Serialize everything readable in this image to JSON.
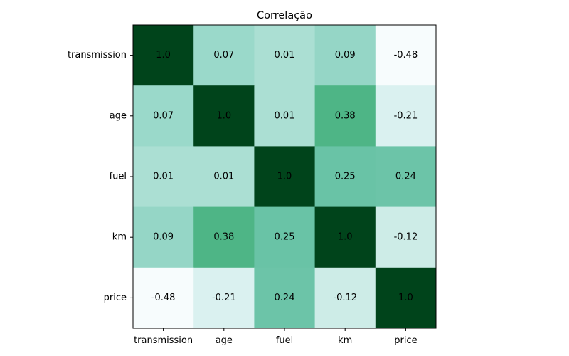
{
  "chart_data": {
    "type": "heatmap",
    "title": "Correlação",
    "xlabel": "",
    "ylabel": "",
    "x_categories": [
      "transmission",
      "age",
      "fuel",
      "km",
      "price"
    ],
    "y_categories": [
      "transmission",
      "age",
      "fuel",
      "km",
      "price"
    ],
    "values": [
      [
        1.0,
        0.07,
        0.01,
        0.09,
        -0.48
      ],
      [
        0.07,
        1.0,
        0.01,
        0.38,
        -0.21
      ],
      [
        0.01,
        0.01,
        1.0,
        0.25,
        0.24
      ],
      [
        0.09,
        0.38,
        0.25,
        1.0,
        -0.12
      ],
      [
        -0.48,
        -0.21,
        0.24,
        -0.12,
        1.0
      ]
    ],
    "value_labels": [
      [
        "1.0",
        "0.07",
        "0.01",
        "0.09",
        "-0.48"
      ],
      [
        "0.07",
        "1.0",
        "0.01",
        "0.38",
        "-0.21"
      ],
      [
        "0.01",
        "0.01",
        "1.0",
        "0.25",
        "0.24"
      ],
      [
        "0.09",
        "0.38",
        "0.25",
        "1.0",
        "-0.12"
      ],
      [
        "-0.48",
        "-0.21",
        "0.24",
        "-0.12",
        "1.0"
      ]
    ],
    "colormap": "BuGn",
    "color_range": [
      -0.48,
      1.0
    ],
    "colorbar": false,
    "grid": false,
    "legend": "none"
  }
}
